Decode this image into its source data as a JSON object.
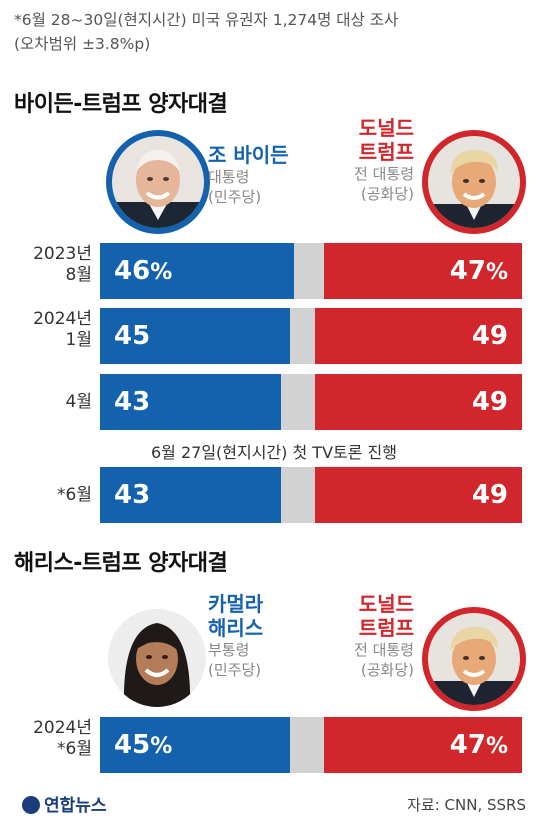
{
  "note": {
    "line1": "*6월 28~30일(현지시간) 미국 유권자 1,274명 대상 조사",
    "line2": "(오차범위 ±3.8%p)"
  },
  "section1": {
    "title": "바이든-트럼프 양자대결",
    "dem": {
      "name": "조 바이든",
      "title": "대통령",
      "party": "(민주당)"
    },
    "rep": {
      "name_line1": "도널드",
      "name_line2": "트럼프",
      "title": "전 대통령",
      "party": "(공화당)"
    }
  },
  "section2": {
    "title": "해리스-트럼프 양자대결",
    "dem": {
      "name_line1": "카멀라",
      "name_line2": "해리스",
      "title": "부통령",
      "party": "(민주당)"
    },
    "rep": {
      "name_line1": "도널드",
      "name_line2": "트럼프",
      "title": "전 대통령",
      "party": "(공화당)"
    }
  },
  "event_note": "6월 27일(현지시간) 첫 TV토론 진행",
  "chart_data": [
    {
      "type": "bar",
      "title": "바이든-트럼프 양자대결",
      "stacked": true,
      "orientation": "horizontal",
      "categories": [
        "2023년 8월",
        "2024년 1월",
        "4월",
        "*6월"
      ],
      "category_labels": [
        [
          "2023년",
          "8월"
        ],
        [
          "2024년",
          "1월"
        ],
        [
          "4월"
        ],
        [
          "*6월"
        ]
      ],
      "series": [
        {
          "name": "조 바이든",
          "values": [
            46,
            45,
            43,
            43
          ],
          "labels": [
            "46%",
            "45",
            "43",
            "43"
          ],
          "color": "#1461ae"
        },
        {
          "name": "도널드 트럼프",
          "values": [
            47,
            49,
            49,
            49
          ],
          "labels": [
            "47%",
            "49",
            "49",
            "49"
          ],
          "color": "#d1262b"
        }
      ],
      "unit": "%",
      "ylim": [
        0,
        100
      ]
    },
    {
      "type": "bar",
      "title": "해리스-트럼프 양자대결",
      "stacked": true,
      "orientation": "horizontal",
      "categories": [
        "2024년 *6월"
      ],
      "category_labels": [
        [
          "2024년",
          "*6월"
        ]
      ],
      "series": [
        {
          "name": "카멀라 해리스",
          "values": [
            45
          ],
          "labels": [
            "45%"
          ],
          "color": "#1461ae"
        },
        {
          "name": "도널드 트럼프",
          "values": [
            47
          ],
          "labels": [
            "47%"
          ],
          "color": "#d1262b"
        }
      ],
      "unit": "%",
      "ylim": [
        0,
        100
      ]
    }
  ],
  "footer": {
    "logo": "연합뉴스",
    "source": "자료: CNN, SSRS"
  },
  "colors": {
    "democrat": "#1461ae",
    "republican": "#d1262b",
    "undecided": "#d2d2d2"
  }
}
